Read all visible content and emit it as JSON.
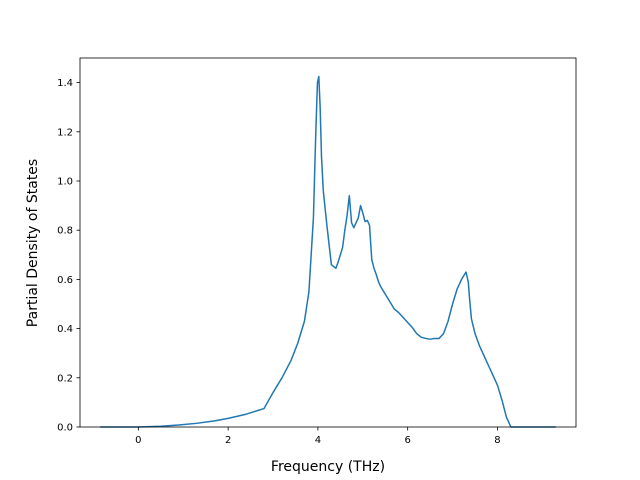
{
  "chart_data": {
    "type": "line",
    "title": "",
    "xlabel": "Frequency (THz)",
    "ylabel": "Partial Density of States",
    "xlim": [
      -1.3,
      9.75
    ],
    "ylim": [
      0.0,
      1.5
    ],
    "x_ticks": [
      0,
      2,
      4,
      6,
      8
    ],
    "x_tick_labels": [
      "0",
      "2",
      "4",
      "6",
      "8"
    ],
    "y_ticks": [
      0.0,
      0.2,
      0.4,
      0.6,
      0.8,
      1.0,
      1.2,
      1.4
    ],
    "y_tick_labels": [
      "0.0",
      "0.2",
      "0.4",
      "0.6",
      "0.8",
      "1.0",
      "1.2",
      "1.4"
    ],
    "grid": false,
    "line_color": "#1f77b4",
    "series": [
      {
        "x": [
          -0.85,
          -0.4,
          0.0,
          0.5,
          0.9,
          1.3,
          1.7,
          2.0,
          2.4,
          2.8,
          3.0,
          3.2,
          3.4,
          3.55,
          3.7,
          3.8,
          3.9,
          3.95,
          3.99,
          4.02,
          4.05,
          4.08,
          4.12,
          4.2,
          4.3,
          4.4,
          4.45,
          4.5,
          4.55,
          4.6,
          4.65,
          4.7,
          4.75,
          4.8,
          4.85,
          4.9,
          4.95,
          5.0,
          5.05,
          5.1,
          5.15,
          5.2,
          5.25,
          5.3,
          5.35,
          5.4,
          5.5,
          5.6,
          5.7,
          5.8,
          5.9,
          6.0,
          6.1,
          6.2,
          6.3,
          6.4,
          6.5,
          6.6,
          6.7,
          6.75,
          6.8,
          6.9,
          7.0,
          7.1,
          7.2,
          7.3,
          7.35,
          7.38,
          7.42,
          7.5,
          7.6,
          7.7,
          7.8,
          7.9,
          8.0,
          8.1,
          8.2,
          8.3,
          8.4,
          8.47,
          8.55,
          8.7,
          9.0,
          9.3
        ],
        "y": [
          0.0,
          0.0,
          0.0,
          0.003,
          0.008,
          0.015,
          0.025,
          0.035,
          0.052,
          0.075,
          0.14,
          0.2,
          0.27,
          0.34,
          0.43,
          0.55,
          0.85,
          1.18,
          1.4,
          1.425,
          1.3,
          1.1,
          0.96,
          0.82,
          0.66,
          0.645,
          0.67,
          0.7,
          0.73,
          0.8,
          0.86,
          0.94,
          0.83,
          0.81,
          0.83,
          0.85,
          0.9,
          0.87,
          0.835,
          0.84,
          0.82,
          0.68,
          0.645,
          0.62,
          0.59,
          0.57,
          0.54,
          0.51,
          0.48,
          0.465,
          0.445,
          0.425,
          0.405,
          0.38,
          0.365,
          0.36,
          0.357,
          0.36,
          0.36,
          0.37,
          0.38,
          0.43,
          0.5,
          0.56,
          0.6,
          0.63,
          0.59,
          0.52,
          0.44,
          0.38,
          0.33,
          0.29,
          0.25,
          0.21,
          0.17,
          0.11,
          0.04,
          0.0,
          0.0,
          0.0,
          0.0,
          0.0,
          0.0,
          0.0
        ]
      }
    ]
  }
}
